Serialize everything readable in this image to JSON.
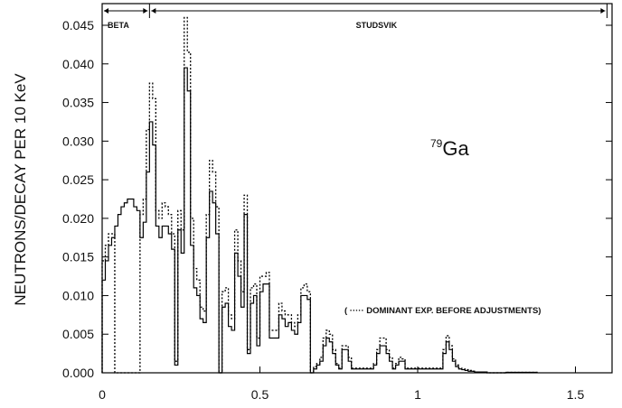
{
  "chart_data": {
    "type": "line",
    "title": "",
    "xlabel": "",
    "ylabel": "NEUTRONS/DECAY PER 10 KeV",
    "xlim": [
      0,
      1.6
    ],
    "ylim": [
      0,
      0.047
    ],
    "x_ticks": [
      {
        "value": 0,
        "label": "0"
      },
      {
        "value": 0.5,
        "label": "0.5"
      },
      {
        "value": 1,
        "label": "1"
      },
      {
        "value": 1.5,
        "label": "1.5"
      }
    ],
    "y_ticks": [
      {
        "value": 0,
        "label": "0.000"
      },
      {
        "value": 0.005,
        "label": "0.005"
      },
      {
        "value": 0.01,
        "label": "0.010"
      },
      {
        "value": 0.015,
        "label": "0.015"
      },
      {
        "value": 0.02,
        "label": "0.020"
      },
      {
        "value": 0.025,
        "label": "0.025"
      },
      {
        "value": 0.03,
        "label": "0.030"
      },
      {
        "value": 0.035,
        "label": "0.035"
      },
      {
        "value": 0.04,
        "label": "0.040"
      },
      {
        "value": 0.045,
        "label": "0.045"
      }
    ],
    "regions": [
      {
        "label": "BETA",
        "from": 0.0,
        "to": 0.15
      },
      {
        "label": "STUDSVIK",
        "from": 0.15,
        "to": 1.6
      }
    ],
    "isotope": {
      "mass": "79",
      "symbol": "Ga"
    },
    "annotation": "( ····· DOMINANT EXP. BEFORE ADJUSTMENTS)",
    "series": [
      {
        "style": "solid",
        "x": [
          0.0,
          0.01,
          0.02,
          0.03,
          0.04,
          0.05,
          0.06,
          0.07,
          0.08,
          0.09,
          0.1,
          0.11,
          0.12,
          0.13,
          0.14,
          0.15,
          0.16,
          0.17,
          0.18,
          0.19,
          0.2,
          0.21,
          0.22,
          0.23,
          0.24,
          0.25,
          0.26,
          0.27,
          0.28,
          0.29,
          0.3,
          0.31,
          0.32,
          0.33,
          0.34,
          0.35,
          0.36,
          0.37,
          0.38,
          0.39,
          0.4,
          0.41,
          0.42,
          0.43,
          0.44,
          0.45,
          0.46,
          0.47,
          0.48,
          0.49,
          0.5,
          0.51,
          0.52,
          0.53,
          0.54,
          0.55,
          0.56,
          0.57,
          0.58,
          0.59,
          0.6,
          0.61,
          0.62,
          0.63,
          0.64,
          0.65,
          0.66,
          0.67,
          0.68,
          0.69,
          0.7,
          0.71,
          0.72,
          0.73,
          0.74,
          0.75,
          0.76,
          0.77,
          0.78,
          0.79,
          0.8,
          0.81,
          0.82,
          0.83,
          0.84,
          0.85,
          0.86,
          0.87,
          0.88,
          0.89,
          0.9,
          0.91,
          0.92,
          0.93,
          0.94,
          0.95,
          0.96,
          0.97,
          0.98,
          0.99,
          1.0,
          1.01,
          1.02,
          1.03,
          1.04,
          1.05,
          1.06,
          1.07,
          1.08,
          1.09,
          1.1,
          1.11,
          1.12,
          1.13,
          1.14,
          1.15,
          1.16,
          1.17,
          1.18,
          1.19,
          1.2,
          1.21,
          1.22,
          1.23,
          1.24,
          1.25,
          1.26,
          1.27
        ],
        "y": [
          0.012,
          0.0145,
          0.0165,
          0.0175,
          0.019,
          0.0205,
          0.0215,
          0.022,
          0.0225,
          0.0225,
          0.0215,
          0.021,
          0.0175,
          0.0195,
          0.026,
          0.0325,
          0.0295,
          0.019,
          0.0175,
          0.019,
          0.019,
          0.018,
          0.016,
          0.001,
          0.0185,
          0.0155,
          0.0395,
          0.0365,
          0.0165,
          0.011,
          0.01,
          0.007,
          0.0065,
          0.0175,
          0.0235,
          0.022,
          0.018,
          0.0,
          0.0085,
          0.009,
          0.006,
          0.0055,
          0.0155,
          0.0125,
          0.0085,
          0.0205,
          0.0025,
          0.009,
          0.01,
          0.0035,
          0.0105,
          0.0115,
          0.0115,
          0.0045,
          0.0045,
          0.0045,
          0.0075,
          0.007,
          0.006,
          0.0065,
          0.0055,
          0.005,
          0.0065,
          0.01,
          0.01,
          0.0095,
          0.0,
          0.0005,
          0.001,
          0.0015,
          0.0035,
          0.0045,
          0.004,
          0.0025,
          0.001,
          0.0005,
          0.003,
          0.003,
          0.0015,
          0.0005,
          0.0005,
          0.0005,
          0.0005,
          0.0005,
          0.0005,
          0.0005,
          0.001,
          0.0025,
          0.0035,
          0.0035,
          0.0025,
          0.0015,
          0.0005,
          0.001,
          0.0015,
          0.0015,
          0.0005,
          0.0005,
          0.0005,
          0.0005,
          0.0005,
          0.0005,
          0.0005,
          0.0005,
          0.0005,
          0.0005,
          0.0005,
          0.0005,
          0.0025,
          0.004,
          0.003,
          0.0015,
          0.0008,
          0.0005,
          0.0004,
          0.0003,
          0.0002,
          0.0002,
          0.0001,
          0.0001,
          0.0001,
          0.0001,
          0.0,
          0.0,
          0.0,
          0.0,
          0.0,
          0.0
        ]
      },
      {
        "style": "dotted",
        "x": [
          0.0,
          0.01,
          0.02,
          0.03,
          0.04,
          0.05,
          0.06,
          0.07,
          0.08,
          0.09,
          0.1,
          0.11,
          0.12,
          0.13,
          0.14,
          0.15,
          0.16,
          0.17,
          0.18,
          0.19,
          0.2,
          0.21,
          0.22,
          0.23,
          0.24,
          0.25,
          0.26,
          0.27,
          0.28,
          0.29,
          0.3,
          0.31,
          0.32,
          0.33,
          0.34,
          0.35,
          0.36,
          0.37,
          0.38,
          0.39,
          0.4,
          0.41,
          0.42,
          0.43,
          0.44,
          0.45,
          0.46,
          0.47,
          0.48,
          0.49,
          0.5,
          0.51,
          0.52,
          0.53,
          0.54,
          0.55,
          0.56,
          0.57,
          0.58,
          0.59,
          0.6,
          0.61,
          0.62,
          0.63,
          0.64,
          0.65,
          0.66,
          0.67,
          0.68,
          0.69,
          0.7,
          0.71,
          0.72,
          0.73,
          0.74,
          0.75,
          0.76,
          0.77,
          0.78,
          0.79,
          0.8,
          0.81,
          0.82,
          0.83,
          0.84,
          0.85,
          0.86,
          0.87,
          0.88,
          0.89,
          0.9,
          0.91,
          0.92,
          0.93,
          0.94,
          0.95,
          0.96,
          0.97,
          0.98,
          0.99,
          1.0,
          1.01,
          1.02,
          1.03,
          1.04,
          1.05,
          1.06,
          1.07,
          1.08,
          1.09,
          1.1,
          1.11,
          1.12,
          1.13,
          1.14,
          1.15,
          1.16,
          1.17,
          1.18,
          1.19,
          1.2,
          1.21,
          1.22,
          1.23,
          1.24,
          1.25,
          1.26,
          1.27
        ],
        "y": [
          0.0145,
          0.0165,
          0.018,
          0.018,
          0.0,
          0.0,
          0.0,
          0.0,
          0.0,
          0.0,
          0.0,
          0.0,
          0.0205,
          0.0225,
          0.0315,
          0.0375,
          0.0355,
          0.021,
          0.02,
          0.022,
          0.0215,
          0.0205,
          0.018,
          0.0015,
          0.021,
          0.0185,
          0.046,
          0.0415,
          0.02,
          0.0135,
          0.012,
          0.0085,
          0.008,
          0.0205,
          0.0275,
          0.026,
          0.0215,
          0.0,
          0.0105,
          0.011,
          0.0075,
          0.007,
          0.0185,
          0.0145,
          0.0105,
          0.023,
          0.003,
          0.011,
          0.0115,
          0.0045,
          0.0125,
          0.0125,
          0.013,
          0.0055,
          0.0055,
          0.0055,
          0.009,
          0.008,
          0.0075,
          0.0075,
          0.0065,
          0.006,
          0.0075,
          0.011,
          0.0115,
          0.0105,
          0.0,
          0.0008,
          0.0012,
          0.002,
          0.0045,
          0.0055,
          0.005,
          0.003,
          0.0012,
          0.0006,
          0.0035,
          0.0035,
          0.002,
          0.0006,
          0.0006,
          0.0006,
          0.0006,
          0.0006,
          0.0006,
          0.0006,
          0.0012,
          0.003,
          0.0045,
          0.0045,
          0.003,
          0.002,
          0.0006,
          0.0012,
          0.002,
          0.0018,
          0.0006,
          0.0006,
          0.0006,
          0.0006,
          0.0006,
          0.0006,
          0.0006,
          0.0006,
          0.0006,
          0.0006,
          0.0006,
          0.0006,
          0.003,
          0.0048,
          0.0035,
          0.0018,
          0.001,
          0.0006,
          0.0005,
          0.0004,
          0.0003,
          0.0002,
          0.0001,
          0.0001,
          0.0001,
          0.0001,
          0.0,
          0.0,
          0.0,
          0.0,
          0.0,
          0.0
        ]
      }
    ]
  }
}
